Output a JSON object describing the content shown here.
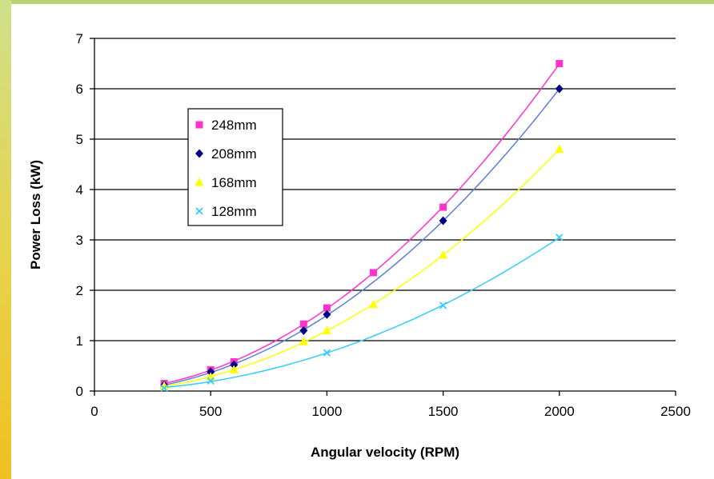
{
  "chart_data": {
    "type": "scatter",
    "title": "",
    "xlabel": "Angular velocity (RPM)",
    "ylabel": "Power Loss (kW)",
    "xlim": [
      0,
      2500
    ],
    "ylim": [
      0,
      7
    ],
    "x_ticks": [
      "0",
      "500",
      "1000",
      "1500",
      "2000",
      "2500"
    ],
    "y_ticks": [
      "0",
      "1",
      "2",
      "3",
      "4",
      "5",
      "6",
      "7"
    ],
    "grid": "horizontal",
    "legend_position": "top-left",
    "trendlines": true,
    "series": [
      {
        "name": "248mm",
        "color": "#ff33cc",
        "marker": "square",
        "x": [
          300,
          500,
          600,
          900,
          1000,
          1200,
          1500,
          2000
        ],
        "y": [
          0.15,
          0.42,
          0.58,
          1.33,
          1.65,
          2.35,
          3.65,
          6.5
        ]
      },
      {
        "name": "208mm",
        "color": "#000080",
        "line_color": "#5b7fd6",
        "marker": "diamond",
        "x": [
          300,
          500,
          600,
          900,
          1000,
          1500,
          2000
        ],
        "y": [
          0.12,
          0.38,
          0.52,
          1.2,
          1.52,
          3.38,
          6.0
        ]
      },
      {
        "name": "168mm",
        "color": "#ffff00",
        "marker": "triangle",
        "x": [
          300,
          500,
          600,
          900,
          1000,
          1200,
          1500,
          2000
        ],
        "y": [
          0.1,
          0.28,
          0.42,
          0.98,
          1.2,
          1.72,
          2.7,
          4.8
        ]
      },
      {
        "name": "128mm",
        "color": "#33ccff",
        "marker": "x",
        "x": [
          300,
          500,
          1000,
          1500,
          2000
        ],
        "y": [
          0.06,
          0.2,
          0.76,
          1.7,
          3.05
        ]
      }
    ]
  }
}
